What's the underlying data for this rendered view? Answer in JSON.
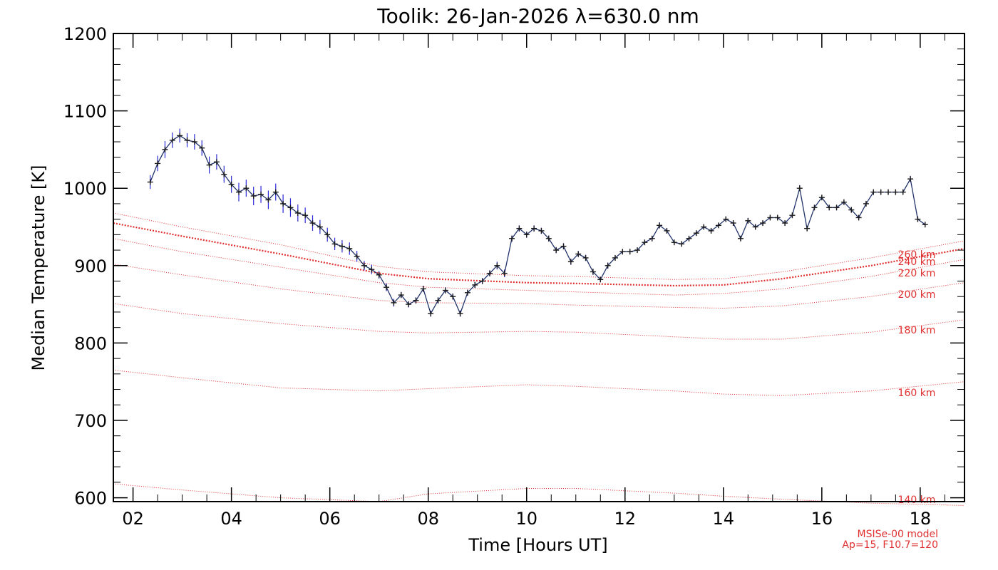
{
  "chart_data": {
    "type": "line",
    "title": "Toolik: 26-Jan-2026 λ=630.0 nm",
    "xlabel": "Time [Hours UT]",
    "ylabel": "Median Temperature [K]",
    "xlim": [
      1.6,
      18.9
    ],
    "ylim": [
      595,
      1200
    ],
    "x_tick_values": [
      2,
      4,
      6,
      8,
      10,
      12,
      14,
      16,
      18
    ],
    "x_tick_labels": [
      "02",
      "04",
      "06",
      "08",
      "10",
      "12",
      "14",
      "16",
      "18"
    ],
    "y_ticks": [
      600,
      700,
      800,
      900,
      1000,
      1100,
      1200
    ],
    "grid": false,
    "colors": {
      "observed": "#1a1a1a",
      "error_bars": "#2a2ad8",
      "model": "#e03030"
    },
    "observed": {
      "x": [
        2.35,
        2.5,
        2.65,
        2.8,
        2.95,
        3.1,
        3.25,
        3.4,
        3.55,
        3.7,
        3.85,
        4.0,
        4.15,
        4.3,
        4.45,
        4.6,
        4.75,
        4.9,
        5.05,
        5.2,
        5.35,
        5.5,
        5.65,
        5.8,
        5.95,
        6.1,
        6.25,
        6.4,
        6.55,
        6.7,
        6.85,
        7.0,
        7.15,
        7.3,
        7.45,
        7.6,
        7.75,
        7.9,
        8.05,
        8.2,
        8.35,
        8.5,
        8.65,
        8.8,
        8.95,
        9.1,
        9.25,
        9.4,
        9.55,
        9.7,
        9.85,
        10.0,
        10.15,
        10.3,
        10.45,
        10.6,
        10.75,
        10.9,
        11.05,
        11.2,
        11.35,
        11.5,
        11.65,
        11.8,
        11.95,
        12.1,
        12.25,
        12.4,
        12.55,
        12.7,
        12.85,
        13.0,
        13.15,
        13.3,
        13.45,
        13.6,
        13.75,
        13.9,
        14.05,
        14.2,
        14.35,
        14.5,
        14.65,
        14.8,
        14.95,
        15.1,
        15.25,
        15.4,
        15.55,
        15.7,
        15.85,
        16.0,
        16.15,
        16.3,
        16.45,
        16.6,
        16.75,
        16.9,
        17.05,
        17.2,
        17.35,
        17.5,
        17.65,
        17.8,
        17.95,
        18.1
      ],
      "y": [
        1008,
        1032,
        1050,
        1062,
        1068,
        1062,
        1060,
        1052,
        1030,
        1034,
        1018,
        1005,
        995,
        1000,
        990,
        992,
        985,
        995,
        980,
        975,
        968,
        965,
        955,
        950,
        940,
        928,
        925,
        922,
        912,
        900,
        895,
        888,
        872,
        852,
        862,
        850,
        855,
        870,
        838,
        855,
        868,
        860,
        838,
        865,
        875,
        880,
        890,
        900,
        890,
        935,
        948,
        940,
        948,
        945,
        935,
        920,
        925,
        905,
        915,
        910,
        892,
        882,
        900,
        910,
        918,
        918,
        920,
        930,
        935,
        952,
        945,
        930,
        928,
        935,
        942,
        950,
        945,
        952,
        960,
        955,
        935,
        958,
        950,
        955,
        962,
        962,
        955,
        965,
        1000,
        948,
        975,
        988,
        975,
        975,
        982,
        972,
        962,
        980,
        995,
        995,
        995,
        995,
        995,
        1012,
        960,
        953
      ],
      "err": [
        9,
        10,
        11,
        10,
        9,
        9,
        10,
        10,
        11,
        10,
        11,
        11,
        12,
        11,
        12,
        11,
        12,
        11,
        12,
        12,
        11,
        10,
        10,
        9,
        9,
        8,
        8,
        8,
        7,
        6,
        6,
        5,
        5,
        5,
        4,
        4,
        4,
        4,
        4,
        4,
        4,
        4,
        4,
        4,
        4,
        4,
        4,
        5,
        5,
        4,
        4,
        4,
        4,
        4,
        4,
        4,
        4,
        4,
        4,
        4,
        4,
        3,
        4,
        3,
        3,
        3,
        3,
        3,
        3,
        4,
        3,
        3,
        3,
        3,
        3,
        3,
        3,
        3,
        3,
        3,
        3,
        3,
        3,
        3,
        3,
        3,
        3,
        3,
        4,
        3,
        3,
        3,
        3,
        3,
        3,
        3,
        3,
        3,
        3,
        3,
        3,
        3,
        3,
        4,
        3,
        3
      ]
    },
    "model_profiles": {
      "x": [
        1.6,
        3,
        5,
        7,
        8,
        10,
        11,
        13,
        14,
        15.2,
        17,
        18.9
      ],
      "series": [
        {
          "name": "140 km",
          "values": [
            618,
            610,
            600,
            595,
            605,
            612,
            612,
            606,
            602,
            598,
            593,
            590
          ]
        },
        {
          "name": "160 km",
          "values": [
            765,
            755,
            742,
            738,
            741,
            746,
            744,
            738,
            734,
            732,
            738,
            750
          ]
        },
        {
          "name": "180 km",
          "values": [
            851,
            838,
            825,
            815,
            813,
            815,
            814,
            808,
            805,
            805,
            814,
            830
          ]
        },
        {
          "name": "200 km",
          "values": [
            902,
            888,
            870,
            855,
            852,
            851,
            849,
            846,
            845,
            848,
            860,
            878
          ]
        },
        {
          "name": "220 km",
          "values": [
            935,
            918,
            898,
            878,
            872,
            868,
            866,
            862,
            864,
            870,
            886,
            908
          ]
        },
        {
          "name": "240 km",
          "values": [
            955,
            938,
            915,
            890,
            883,
            878,
            877,
            874,
            875,
            883,
            900,
            922
          ]
        },
        {
          "name": "260 km",
          "values": [
            968,
            950,
            927,
            899,
            892,
            887,
            886,
            882,
            883,
            892,
            910,
            932
          ]
        }
      ],
      "labels": [
        "140 km",
        "160 km",
        "180 km",
        "200 km",
        "220 km",
        "240 km",
        "260 km"
      ]
    },
    "model_note": {
      "line1": "MSISe-00 model",
      "line2": "Ap=15, F10.7=120"
    }
  }
}
